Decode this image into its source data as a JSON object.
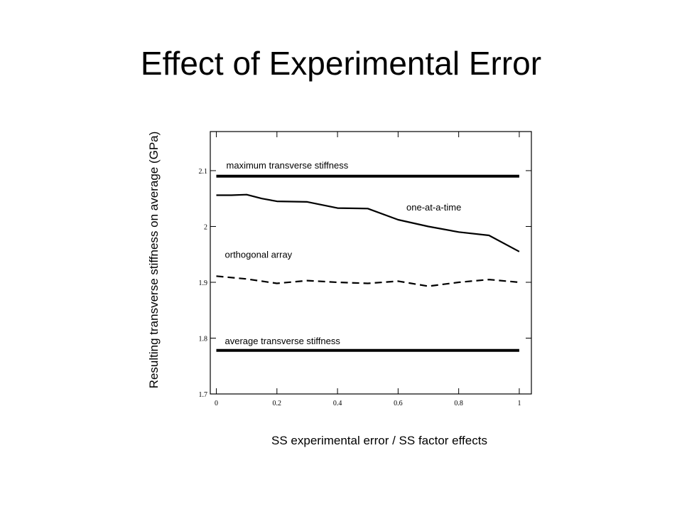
{
  "slide": {
    "title": "Effect of Experimental Error"
  },
  "chart_data": {
    "type": "line",
    "title": "",
    "xlabel": "SS experimental error / SS factor effects",
    "ylabel": "Resulting transverse stiffness on average (GPa)",
    "xlim": [
      -0.02,
      1.04
    ],
    "ylim": [
      1.7,
      2.17
    ],
    "xticks": [
      0,
      0.2,
      0.4,
      0.6,
      0.8,
      1
    ],
    "xtick_labels": [
      "0",
      "0.2",
      "0.4",
      "0.6",
      "0.8",
      "1"
    ],
    "yticks": [
      1.7,
      1.8,
      1.9,
      2,
      2.1
    ],
    "ytick_labels": [
      "1.7",
      "1.8",
      "1.9",
      "2",
      "2.1"
    ],
    "grid": false,
    "series": [
      {
        "name": "maximum transverse stiffness",
        "style": "solid-thick",
        "x": [
          0,
          1
        ],
        "y": [
          2.09,
          2.09
        ]
      },
      {
        "name": "one-at-a-time",
        "style": "solid",
        "x": [
          0,
          0.05,
          0.1,
          0.15,
          0.2,
          0.3,
          0.4,
          0.5,
          0.6,
          0.7,
          0.8,
          0.9,
          1.0
        ],
        "y": [
          2.056,
          2.056,
          2.057,
          2.05,
          2.045,
          2.044,
          2.033,
          2.032,
          2.012,
          2.0,
          1.99,
          1.984,
          1.955
        ]
      },
      {
        "name": "orthogonal array",
        "style": "dashed",
        "x": [
          0,
          0.1,
          0.2,
          0.3,
          0.4,
          0.5,
          0.6,
          0.7,
          0.8,
          0.9,
          1.0
        ],
        "y": [
          1.911,
          1.906,
          1.898,
          1.903,
          1.9,
          1.898,
          1.902,
          1.893,
          1.9,
          1.905,
          1.9
        ]
      },
      {
        "name": "average transverse stiffness",
        "style": "solid-thick",
        "x": [
          0,
          1
        ],
        "y": [
          1.778,
          1.778
        ]
      }
    ]
  }
}
